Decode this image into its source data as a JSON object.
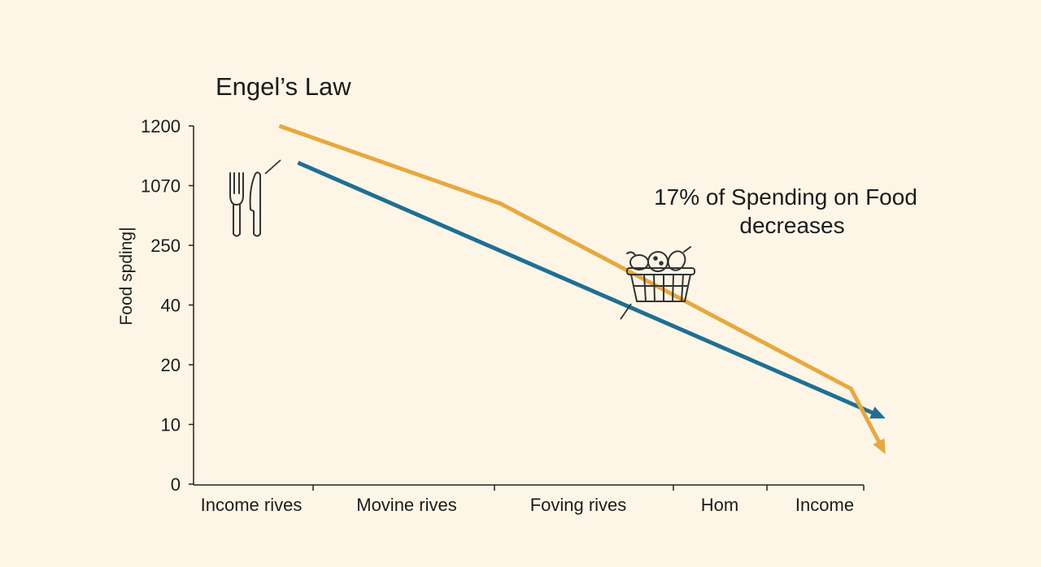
{
  "chart_data": {
    "type": "line",
    "title": "Engel’s Law",
    "ylabel": "Food spding|",
    "xlabel": "",
    "y_ticks": [
      "1200",
      "1070",
      "250",
      "40",
      "20",
      "10",
      "0"
    ],
    "x_ticks": [
      "Income rives",
      "Movine rives",
      "Foving rives",
      "Hom",
      "Income"
    ],
    "grid": false,
    "legend": "none",
    "annotation": [
      "17% of Spending on Food",
      "decreases"
    ],
    "series": [
      {
        "color": "#1f6f94",
        "points": [
          [
            0.3,
            1120
          ],
          [
            4.58,
            11
          ]
        ]
      },
      {
        "color": "#e8a83e",
        "points": [
          [
            0.18,
            1200
          ],
          [
            1.55,
            820
          ],
          [
            4.25,
            16
          ],
          [
            4.58,
            5
          ]
        ]
      }
    ],
    "icons": [
      "fork-knife-icon",
      "food-basket-icon"
    ]
  }
}
